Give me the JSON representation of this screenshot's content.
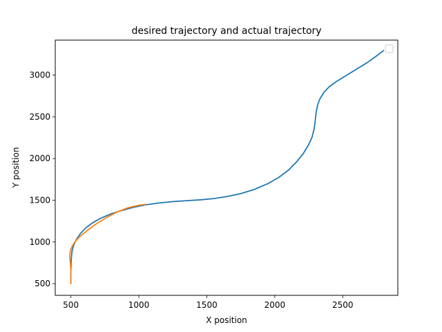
{
  "chart_data": {
    "type": "line",
    "title": "desired trajectory and actual trajectory",
    "xlabel": "X position",
    "ylabel": "Y position",
    "xlim": [
      385,
      2905
    ],
    "ylim": [
      360,
      3420
    ],
    "xticks": [
      500,
      1000,
      1500,
      2000,
      2500
    ],
    "yticks": [
      500,
      1000,
      1500,
      2000,
      2500,
      3000
    ],
    "legend": "upper right (empty)",
    "grid": false,
    "series": [
      {
        "name": "desired trajectory",
        "color": "#1f77b4",
        "x": [
          500,
          500,
          502,
          505,
          510,
          520,
          540,
          570,
          610,
          660,
          720,
          800,
          880,
          960,
          1050,
          1150,
          1250,
          1350,
          1450,
          1550,
          1650,
          1750,
          1850,
          1950,
          2030,
          2100,
          2160,
          2210,
          2250,
          2275,
          2290,
          2298,
          2305,
          2315,
          2330,
          2360,
          2400,
          2450,
          2500,
          2560,
          2620,
          2680,
          2740,
          2800
        ],
        "y": [
          500,
          650,
          760,
          840,
          900,
          960,
          1030,
          1100,
          1170,
          1230,
          1285,
          1340,
          1380,
          1415,
          1445,
          1468,
          1484,
          1495,
          1505,
          1520,
          1545,
          1580,
          1630,
          1700,
          1775,
          1860,
          1960,
          2060,
          2170,
          2260,
          2360,
          2460,
          2560,
          2640,
          2710,
          2790,
          2860,
          2920,
          2970,
          3030,
          3090,
          3150,
          3220,
          3295
        ]
      },
      {
        "name": "actual trajectory",
        "color": "#ff7f0e",
        "x": [
          500,
          500,
          497,
          493,
          492,
          494,
          500,
          510,
          525,
          550,
          585,
          630,
          690,
          760,
          840,
          920,
          1000,
          1050
        ],
        "y": [
          500,
          650,
          740,
          790,
          830,
          870,
          910,
          950,
          990,
          1040,
          1090,
          1150,
          1220,
          1290,
          1360,
          1410,
          1440,
          1450
        ]
      }
    ]
  }
}
